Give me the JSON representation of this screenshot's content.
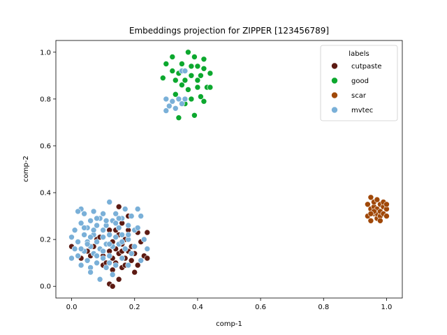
{
  "chart_data": {
    "type": "scatter",
    "title": "Embeddings projection for ZIPPER [123456789]",
    "xlabel": "comp-1",
    "ylabel": "comp-2",
    "xlim": [
      -0.05,
      1.05
    ],
    "ylim": [
      -0.05,
      1.05
    ],
    "xticks": [
      "0.0",
      "0.2",
      "0.4",
      "0.6",
      "0.8",
      "1.0"
    ],
    "yticks": [
      "0.0",
      "0.2",
      "0.4",
      "0.6",
      "0.8",
      "1.0"
    ],
    "grid": false,
    "legend": {
      "title": "labels",
      "placement": "top-right"
    },
    "series": [
      {
        "name": "cutpaste",
        "color": "#5c1a12",
        "points": [
          [
            0.0,
            0.17
          ],
          [
            0.03,
            0.12
          ],
          [
            0.05,
            0.15
          ],
          [
            0.06,
            0.13
          ],
          [
            0.07,
            0.17
          ],
          [
            0.08,
            0.2
          ],
          [
            0.09,
            0.16
          ],
          [
            0.1,
            0.13
          ],
          [
            0.1,
            0.09
          ],
          [
            0.11,
            0.18
          ],
          [
            0.11,
            0.1
          ],
          [
            0.12,
            0.01
          ],
          [
            0.12,
            0.15
          ],
          [
            0.13,
            0.0
          ],
          [
            0.13,
            0.07
          ],
          [
            0.13,
            0.19
          ],
          [
            0.14,
            0.16
          ],
          [
            0.14,
            0.1
          ],
          [
            0.14,
            0.24
          ],
          [
            0.15,
            0.03
          ],
          [
            0.15,
            0.14
          ],
          [
            0.15,
            0.22
          ],
          [
            0.16,
            0.08
          ],
          [
            0.16,
            0.18
          ],
          [
            0.16,
            0.27
          ],
          [
            0.17,
            0.12
          ],
          [
            0.17,
            0.09
          ],
          [
            0.17,
            0.2
          ],
          [
            0.18,
            0.15
          ],
          [
            0.18,
            0.3
          ],
          [
            0.19,
            0.17
          ],
          [
            0.19,
            0.11
          ],
          [
            0.2,
            0.14
          ],
          [
            0.2,
            0.06
          ],
          [
            0.21,
            0.09
          ],
          [
            0.22,
            0.19
          ],
          [
            0.23,
            0.13
          ],
          [
            0.24,
            0.23
          ],
          [
            0.24,
            0.12
          ],
          [
            0.15,
            0.34
          ],
          [
            0.18,
            0.24
          ],
          [
            0.12,
            0.24
          ],
          [
            0.09,
            0.21
          ],
          [
            0.13,
            0.12
          ],
          [
            0.16,
            0.15
          ],
          [
            0.21,
            0.23
          ]
        ]
      },
      {
        "name": "good",
        "color": "#0ca82e",
        "points": [
          [
            0.29,
            0.89
          ],
          [
            0.3,
            0.95
          ],
          [
            0.32,
            0.92
          ],
          [
            0.32,
            0.98
          ],
          [
            0.33,
            0.82
          ],
          [
            0.33,
            0.88
          ],
          [
            0.34,
            0.91
          ],
          [
            0.34,
            0.72
          ],
          [
            0.35,
            0.95
          ],
          [
            0.35,
            0.86
          ],
          [
            0.36,
            0.92
          ],
          [
            0.36,
            0.88
          ],
          [
            0.37,
            1.0
          ],
          [
            0.37,
            0.84
          ],
          [
            0.38,
            0.94
          ],
          [
            0.38,
            0.9
          ],
          [
            0.39,
            0.98
          ],
          [
            0.39,
            0.73
          ],
          [
            0.4,
            0.94
          ],
          [
            0.4,
            0.88
          ],
          [
            0.41,
            0.81
          ],
          [
            0.41,
            0.9
          ],
          [
            0.42,
            0.97
          ],
          [
            0.42,
            0.79
          ],
          [
            0.42,
            0.93
          ],
          [
            0.43,
            0.85
          ],
          [
            0.44,
            0.85
          ],
          [
            0.44,
            0.91
          ],
          [
            0.38,
            0.8
          ],
          [
            0.36,
            0.78
          ],
          [
            0.4,
            0.85
          ]
        ]
      },
      {
        "name": "scar",
        "color": "#a04808",
        "points": [
          [
            0.94,
            0.3
          ],
          [
            0.94,
            0.35
          ],
          [
            0.95,
            0.33
          ],
          [
            0.95,
            0.38
          ],
          [
            0.95,
            0.28
          ],
          [
            0.96,
            0.31
          ],
          [
            0.96,
            0.34
          ],
          [
            0.96,
            0.36
          ],
          [
            0.97,
            0.29
          ],
          [
            0.97,
            0.33
          ],
          [
            0.97,
            0.37
          ],
          [
            0.97,
            0.31
          ],
          [
            0.98,
            0.35
          ],
          [
            0.98,
            0.3
          ],
          [
            0.98,
            0.32
          ],
          [
            0.99,
            0.34
          ],
          [
            0.99,
            0.36
          ],
          [
            0.99,
            0.31
          ],
          [
            1.0,
            0.33
          ],
          [
            1.0,
            0.3
          ],
          [
            0.96,
            0.32
          ],
          [
            0.98,
            0.28
          ],
          [
            0.95,
            0.31
          ],
          [
            1.0,
            0.35
          ]
        ]
      },
      {
        "name": "mvtec",
        "color": "#7ab0d8",
        "points": [
          [
            0.0,
            0.12
          ],
          [
            0.0,
            0.21
          ],
          [
            0.01,
            0.16
          ],
          [
            0.01,
            0.24
          ],
          [
            0.02,
            0.19
          ],
          [
            0.02,
            0.13
          ],
          [
            0.03,
            0.27
          ],
          [
            0.03,
            0.09
          ],
          [
            0.03,
            0.33
          ],
          [
            0.04,
            0.15
          ],
          [
            0.04,
            0.22
          ],
          [
            0.04,
            0.31
          ],
          [
            0.05,
            0.19
          ],
          [
            0.05,
            0.11
          ],
          [
            0.05,
            0.25
          ],
          [
            0.06,
            0.08
          ],
          [
            0.06,
            0.17
          ],
          [
            0.06,
            0.28
          ],
          [
            0.06,
            0.06
          ],
          [
            0.07,
            0.22
          ],
          [
            0.07,
            0.14
          ],
          [
            0.07,
            0.32
          ],
          [
            0.08,
            0.19
          ],
          [
            0.08,
            0.1
          ],
          [
            0.08,
            0.26
          ],
          [
            0.09,
            0.03
          ],
          [
            0.09,
            0.16
          ],
          [
            0.09,
            0.29
          ],
          [
            0.1,
            0.21
          ],
          [
            0.1,
            0.12
          ],
          [
            0.1,
            0.31
          ],
          [
            0.11,
            0.18
          ],
          [
            0.11,
            0.08
          ],
          [
            0.11,
            0.26
          ],
          [
            0.12,
            0.36
          ],
          [
            0.12,
            0.22
          ],
          [
            0.12,
            0.13
          ],
          [
            0.13,
            0.28
          ],
          [
            0.13,
            0.17
          ],
          [
            0.13,
            0.05
          ],
          [
            0.14,
            0.31
          ],
          [
            0.14,
            0.21
          ],
          [
            0.14,
            0.09
          ],
          [
            0.15,
            0.25
          ],
          [
            0.15,
            0.18
          ],
          [
            0.16,
            0.29
          ],
          [
            0.16,
            0.12
          ],
          [
            0.16,
            0.22
          ],
          [
            0.17,
            0.33
          ],
          [
            0.17,
            0.16
          ],
          [
            0.18,
            0.26
          ],
          [
            0.18,
            0.09
          ],
          [
            0.18,
            0.2
          ],
          [
            0.19,
            0.3
          ],
          [
            0.19,
            0.14
          ],
          [
            0.2,
            0.24
          ],
          [
            0.2,
            0.17
          ],
          [
            0.21,
            0.33
          ],
          [
            0.21,
            0.25
          ],
          [
            0.22,
            0.3
          ],
          [
            0.22,
            0.11
          ],
          [
            0.23,
            0.2
          ],
          [
            0.24,
            0.16
          ],
          [
            0.02,
            0.32
          ],
          [
            0.04,
            0.25
          ],
          [
            0.06,
            0.21
          ],
          [
            0.08,
            0.29
          ],
          [
            0.1,
            0.24
          ],
          [
            0.12,
            0.18
          ],
          [
            0.14,
            0.27
          ],
          [
            0.16,
            0.19
          ],
          [
            0.18,
            0.22
          ],
          [
            0.08,
            0.13
          ],
          [
            0.1,
            0.15
          ],
          [
            0.12,
            0.1
          ],
          [
            0.05,
            0.18
          ],
          [
            0.03,
            0.16
          ],
          [
            0.15,
            0.29
          ],
          [
            0.11,
            0.28
          ],
          [
            0.07,
            0.24
          ],
          [
            0.3,
            0.75
          ],
          [
            0.3,
            0.8
          ],
          [
            0.31,
            0.77
          ],
          [
            0.32,
            0.79
          ],
          [
            0.33,
            0.76
          ],
          [
            0.34,
            0.8
          ],
          [
            0.35,
            0.78
          ],
          [
            0.36,
            0.8
          ],
          [
            0.35,
            0.92
          ],
          [
            0.36,
            0.92
          ]
        ]
      }
    ]
  }
}
